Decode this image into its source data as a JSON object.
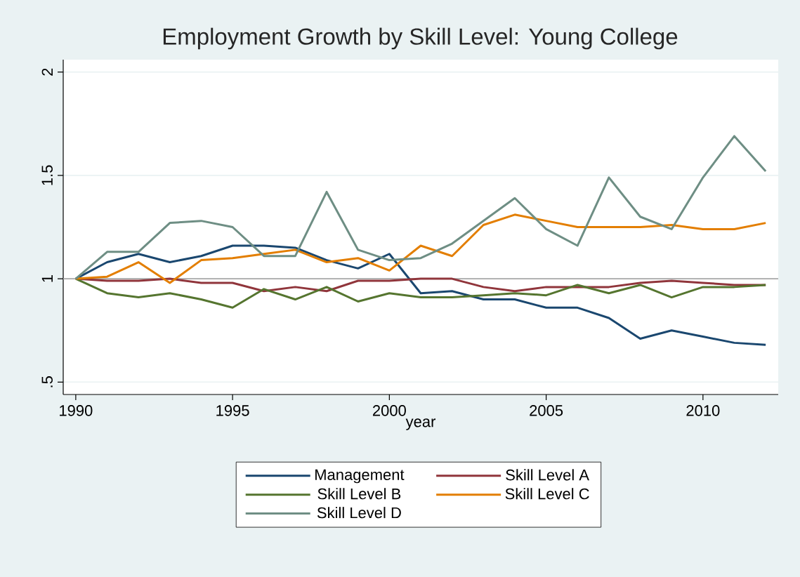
{
  "chart_data": {
    "type": "line",
    "title": "Employment Growth by Skill Level: Young College",
    "xlabel": "year",
    "x": [
      1990,
      1991,
      1992,
      1993,
      1994,
      1995,
      1996,
      1997,
      1998,
      1999,
      2000,
      2001,
      2002,
      2003,
      2004,
      2005,
      2006,
      2007,
      2008,
      2009,
      2010,
      2011,
      2012
    ],
    "series": [
      {
        "name": "Management",
        "color": "#1a476f",
        "values": [
          1,
          1.08,
          1.12,
          1.08,
          1.11,
          1.16,
          1.16,
          1.15,
          1.09,
          1.05,
          1.12,
          0.93,
          0.94,
          0.9,
          0.9,
          0.86,
          0.86,
          0.81,
          0.71,
          0.75,
          0.72,
          0.69,
          0.68
        ]
      },
      {
        "name": "Skill Level A",
        "color": "#90353b",
        "values": [
          1,
          0.99,
          0.99,
          1.0,
          0.98,
          0.98,
          0.94,
          0.96,
          0.94,
          0.99,
          0.99,
          1.0,
          1.0,
          0.96,
          0.94,
          0.96,
          0.96,
          0.96,
          0.98,
          0.99,
          0.98,
          0.97,
          0.97
        ]
      },
      {
        "name": "Skill Level B",
        "color": "#55752f",
        "values": [
          1,
          0.93,
          0.91,
          0.93,
          0.9,
          0.86,
          0.95,
          0.9,
          0.96,
          0.89,
          0.93,
          0.91,
          0.91,
          0.92,
          0.93,
          0.92,
          0.97,
          0.93,
          0.97,
          0.91,
          0.96,
          0.96,
          0.97
        ]
      },
      {
        "name": "Skill Level C",
        "color": "#e37e00",
        "values": [
          1,
          1.01,
          1.08,
          0.98,
          1.09,
          1.1,
          1.12,
          1.14,
          1.08,
          1.1,
          1.04,
          1.16,
          1.11,
          1.26,
          1.31,
          1.28,
          1.25,
          1.25,
          1.25,
          1.26,
          1.24,
          1.24,
          1.27
        ]
      },
      {
        "name": "Skill Level D",
        "color": "#6e8e84",
        "values": [
          1,
          1.13,
          1.13,
          1.27,
          1.28,
          1.25,
          1.11,
          1.11,
          1.42,
          1.14,
          1.09,
          1.1,
          1.17,
          1.28,
          1.39,
          1.24,
          1.16,
          1.49,
          1.3,
          1.24,
          1.49,
          1.69,
          1.52
        ]
      }
    ],
    "xlim": [
      1989.6,
      2012.4
    ],
    "ylim": [
      0.44,
      2.06
    ],
    "xticks": [
      1990,
      1995,
      2000,
      2005,
      2010
    ],
    "yticks": [
      {
        "value": 0.5,
        "label": ".5"
      },
      1,
      1.5,
      2
    ],
    "ref_lines": [
      {
        "axis": "y",
        "value": 1,
        "color": "#a8a8a8"
      }
    ],
    "grid": "y",
    "legend": "bottom",
    "marker": "none",
    "line_style": "solid"
  }
}
